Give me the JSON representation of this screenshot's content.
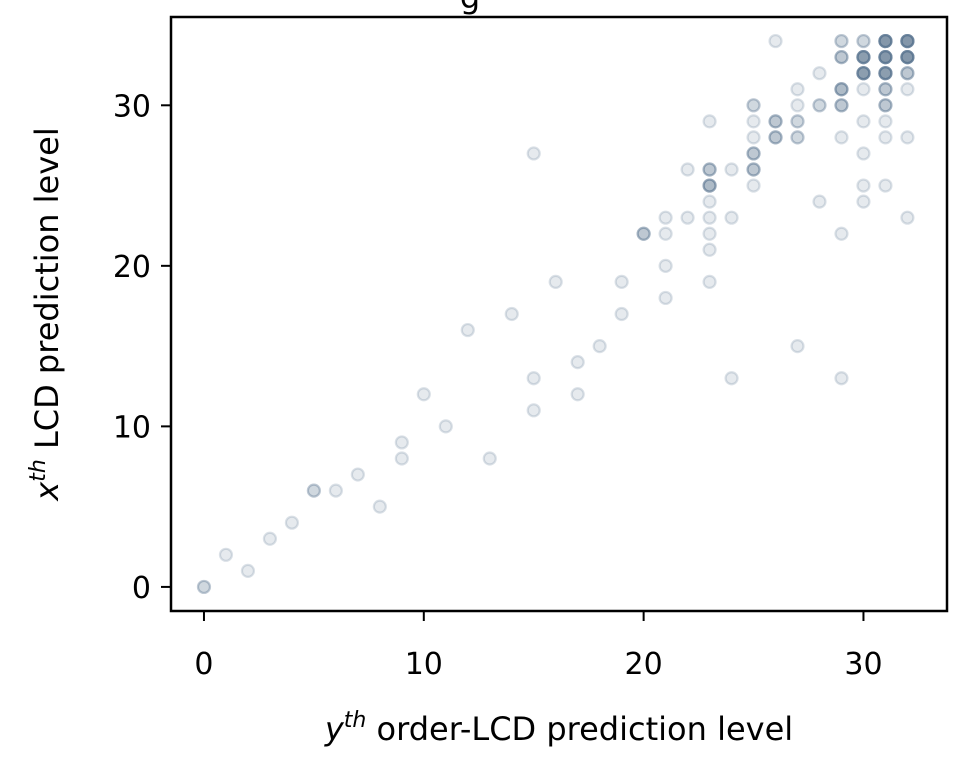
{
  "chart_data": {
    "type": "scatter",
    "title": "g",
    "xlabel": {
      "var": "y",
      "sup": "th",
      "rest": " order-LCD prediction level"
    },
    "ylabel": {
      "var": "x",
      "sup": "th",
      "rest": " LCD prediction level"
    },
    "xlim": [
      -1.5,
      33.8
    ],
    "ylim": [
      -1.5,
      35.5
    ],
    "xticks": [
      0,
      10,
      20,
      30
    ],
    "yticks": [
      0,
      10,
      20,
      30
    ],
    "grid": false,
    "marker_color": "#5a7590",
    "points": [
      [
        0,
        0
      ],
      [
        0,
        0
      ],
      [
        1,
        2
      ],
      [
        2,
        1
      ],
      [
        3,
        3
      ],
      [
        4,
        4
      ],
      [
        5,
        6
      ],
      [
        5,
        6
      ],
      [
        6,
        6
      ],
      [
        7,
        7
      ],
      [
        8,
        5
      ],
      [
        9,
        8
      ],
      [
        9,
        9
      ],
      [
        10,
        12
      ],
      [
        11,
        10
      ],
      [
        12,
        16
      ],
      [
        13,
        8
      ],
      [
        14,
        17
      ],
      [
        15,
        11
      ],
      [
        15,
        13
      ],
      [
        15,
        27
      ],
      [
        16,
        19
      ],
      [
        17,
        12
      ],
      [
        17,
        14
      ],
      [
        18,
        15
      ],
      [
        19,
        17
      ],
      [
        19,
        19
      ],
      [
        20,
        22
      ],
      [
        20,
        22
      ],
      [
        20,
        22
      ],
      [
        21,
        18
      ],
      [
        21,
        20
      ],
      [
        21,
        22
      ],
      [
        21,
        23
      ],
      [
        22,
        23
      ],
      [
        22,
        26
      ],
      [
        23,
        19
      ],
      [
        23,
        21
      ],
      [
        23,
        22
      ],
      [
        23,
        23
      ],
      [
        23,
        24
      ],
      [
        23,
        25
      ],
      [
        23,
        25
      ],
      [
        23,
        25
      ],
      [
        23,
        25
      ],
      [
        23,
        26
      ],
      [
        23,
        26
      ],
      [
        23,
        26
      ],
      [
        23,
        29
      ],
      [
        24,
        13
      ],
      [
        24,
        23
      ],
      [
        24,
        26
      ],
      [
        25,
        25
      ],
      [
        25,
        26
      ],
      [
        25,
        26
      ],
      [
        25,
        26
      ],
      [
        25,
        27
      ],
      [
        25,
        27
      ],
      [
        25,
        27
      ],
      [
        25,
        28
      ],
      [
        25,
        29
      ],
      [
        25,
        30
      ],
      [
        25,
        30
      ],
      [
        26,
        28
      ],
      [
        26,
        28
      ],
      [
        26,
        28
      ],
      [
        26,
        29
      ],
      [
        26,
        29
      ],
      [
        26,
        29
      ],
      [
        26,
        34
      ],
      [
        27,
        15
      ],
      [
        27,
        28
      ],
      [
        27,
        28
      ],
      [
        27,
        29
      ],
      [
        27,
        29
      ],
      [
        27,
        30
      ],
      [
        27,
        31
      ],
      [
        28,
        24
      ],
      [
        28,
        30
      ],
      [
        28,
        30
      ],
      [
        28,
        32
      ],
      [
        29,
        13
      ],
      [
        29,
        22
      ],
      [
        29,
        28
      ],
      [
        29,
        30
      ],
      [
        29,
        30
      ],
      [
        29,
        30
      ],
      [
        29,
        31
      ],
      [
        29,
        31
      ],
      [
        29,
        31
      ],
      [
        29,
        31
      ],
      [
        29,
        33
      ],
      [
        29,
        33
      ],
      [
        29,
        33
      ],
      [
        29,
        34
      ],
      [
        29,
        34
      ],
      [
        30,
        24
      ],
      [
        30,
        25
      ],
      [
        30,
        27
      ],
      [
        30,
        29
      ],
      [
        30,
        31
      ],
      [
        30,
        32
      ],
      [
        30,
        32
      ],
      [
        30,
        32
      ],
      [
        30,
        32
      ],
      [
        30,
        32
      ],
      [
        30,
        32
      ],
      [
        30,
        32
      ],
      [
        30,
        33
      ],
      [
        30,
        33
      ],
      [
        30,
        33
      ],
      [
        30,
        33
      ],
      [
        30,
        33
      ],
      [
        30,
        33
      ],
      [
        30,
        33
      ],
      [
        30,
        34
      ],
      [
        30,
        34
      ],
      [
        31,
        25
      ],
      [
        31,
        28
      ],
      [
        31,
        29
      ],
      [
        31,
        30
      ],
      [
        31,
        30
      ],
      [
        31,
        30
      ],
      [
        31,
        31
      ],
      [
        31,
        31
      ],
      [
        31,
        31
      ],
      [
        31,
        32
      ],
      [
        31,
        32
      ],
      [
        31,
        32
      ],
      [
        31,
        32
      ],
      [
        31,
        32
      ],
      [
        31,
        32
      ],
      [
        31,
        32
      ],
      [
        31,
        33
      ],
      [
        31,
        33
      ],
      [
        31,
        33
      ],
      [
        31,
        33
      ],
      [
        31,
        33
      ],
      [
        31,
        33
      ],
      [
        31,
        33
      ],
      [
        31,
        33
      ],
      [
        31,
        34
      ],
      [
        31,
        34
      ],
      [
        31,
        34
      ],
      [
        31,
        34
      ],
      [
        31,
        34
      ],
      [
        31,
        34
      ],
      [
        31,
        34
      ],
      [
        31,
        34
      ],
      [
        32,
        23
      ],
      [
        32,
        28
      ],
      [
        32,
        31
      ],
      [
        32,
        32
      ],
      [
        32,
        32
      ],
      [
        32,
        32
      ],
      [
        32,
        33
      ],
      [
        32,
        33
      ],
      [
        32,
        33
      ],
      [
        32,
        33
      ],
      [
        32,
        33
      ],
      [
        32,
        33
      ],
      [
        32,
        33
      ],
      [
        32,
        33
      ],
      [
        32,
        34
      ],
      [
        32,
        34
      ],
      [
        32,
        34
      ],
      [
        32,
        34
      ],
      [
        32,
        34
      ],
      [
        32,
        34
      ],
      [
        32,
        34
      ],
      [
        32,
        34
      ]
    ]
  }
}
